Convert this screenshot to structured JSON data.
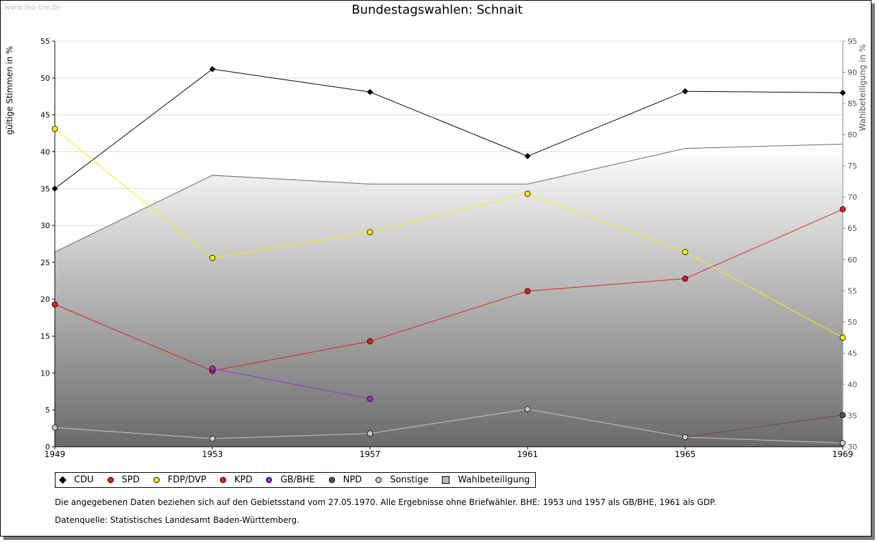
{
  "watermark": "www.leo-bw.de",
  "chart_data": {
    "type": "line",
    "title": "Bundestagswahlen: Schnait",
    "ylabel": "gültige Stimmen in %",
    "y2label": "Wahlbeteiligung in %",
    "ylim": [
      0,
      55
    ],
    "y2lim": [
      30,
      95
    ],
    "yticks": [
      "0",
      "5",
      "10",
      "15",
      "20",
      "25",
      "30",
      "35",
      "40",
      "45",
      "50",
      "55"
    ],
    "y2ticks": [
      "30",
      "35",
      "40",
      "45",
      "50",
      "55",
      "60",
      "65",
      "70",
      "75",
      "80",
      "85",
      "90",
      "95"
    ],
    "categories": [
      "1949",
      "1953",
      "1957",
      "1961",
      "1965",
      "1969"
    ],
    "grid": true,
    "legend_position": "bottom",
    "turnout": {
      "name": "Wahlbeteiligung",
      "values": [
        61.2,
        73.5,
        72.1,
        72.1,
        77.8,
        78.5
      ]
    },
    "series": [
      {
        "name": "CDU",
        "color": "#000000",
        "values": [
          35.0,
          51.2,
          48.1,
          39.4,
          48.2,
          48.0
        ]
      },
      {
        "name": "SPD",
        "color": "#e02020",
        "values": [
          19.3,
          10.3,
          14.3,
          21.1,
          22.8,
          32.2
        ]
      },
      {
        "name": "FDP/DVP",
        "color": "#f5f000",
        "values": [
          43.1,
          25.6,
          29.1,
          34.3,
          26.4,
          14.8
        ]
      },
      {
        "name": "KPD",
        "color": "#e02020",
        "values": [
          null,
          null,
          null,
          null,
          null,
          null
        ]
      },
      {
        "name": "GB/BHE",
        "color": "#9a30d0",
        "values": [
          null,
          10.6,
          6.5,
          null,
          null,
          null
        ]
      },
      {
        "name": "NPD",
        "color": "#6b4a3a",
        "values": [
          null,
          null,
          null,
          null,
          1.3,
          4.3
        ]
      },
      {
        "name": "Sonstige",
        "color": "#c8c8c8",
        "values": [
          2.6,
          1.1,
          1.8,
          5.1,
          1.3,
          0.5
        ]
      }
    ]
  },
  "legend": {
    "items": [
      {
        "label": "CDU",
        "color": "#000000"
      },
      {
        "label": "SPD",
        "color": "#e02020"
      },
      {
        "label": "FDP/DVP",
        "color": "#f5f000"
      },
      {
        "label": "KPD",
        "color": "#e02020"
      },
      {
        "label": "GB/BHE",
        "color": "#9a30d0"
      },
      {
        "label": "NPD",
        "color": "#6b4a3a"
      },
      {
        "label": "Sonstige",
        "color": "#c8c8c8"
      }
    ],
    "turnout_label": "Wahlbeteiligung"
  },
  "notes": {
    "line1": "Die angegebenen Daten beziehen sich auf den Gebietsstand vom 27.05.1970. Alle Ergebnisse ohne Briefwähler. BHE: 1953 und 1957 als GB/BHE, 1961 als GDP.",
    "line2": "Datenquelle: Statistisches Landesamt Baden-Württemberg."
  }
}
